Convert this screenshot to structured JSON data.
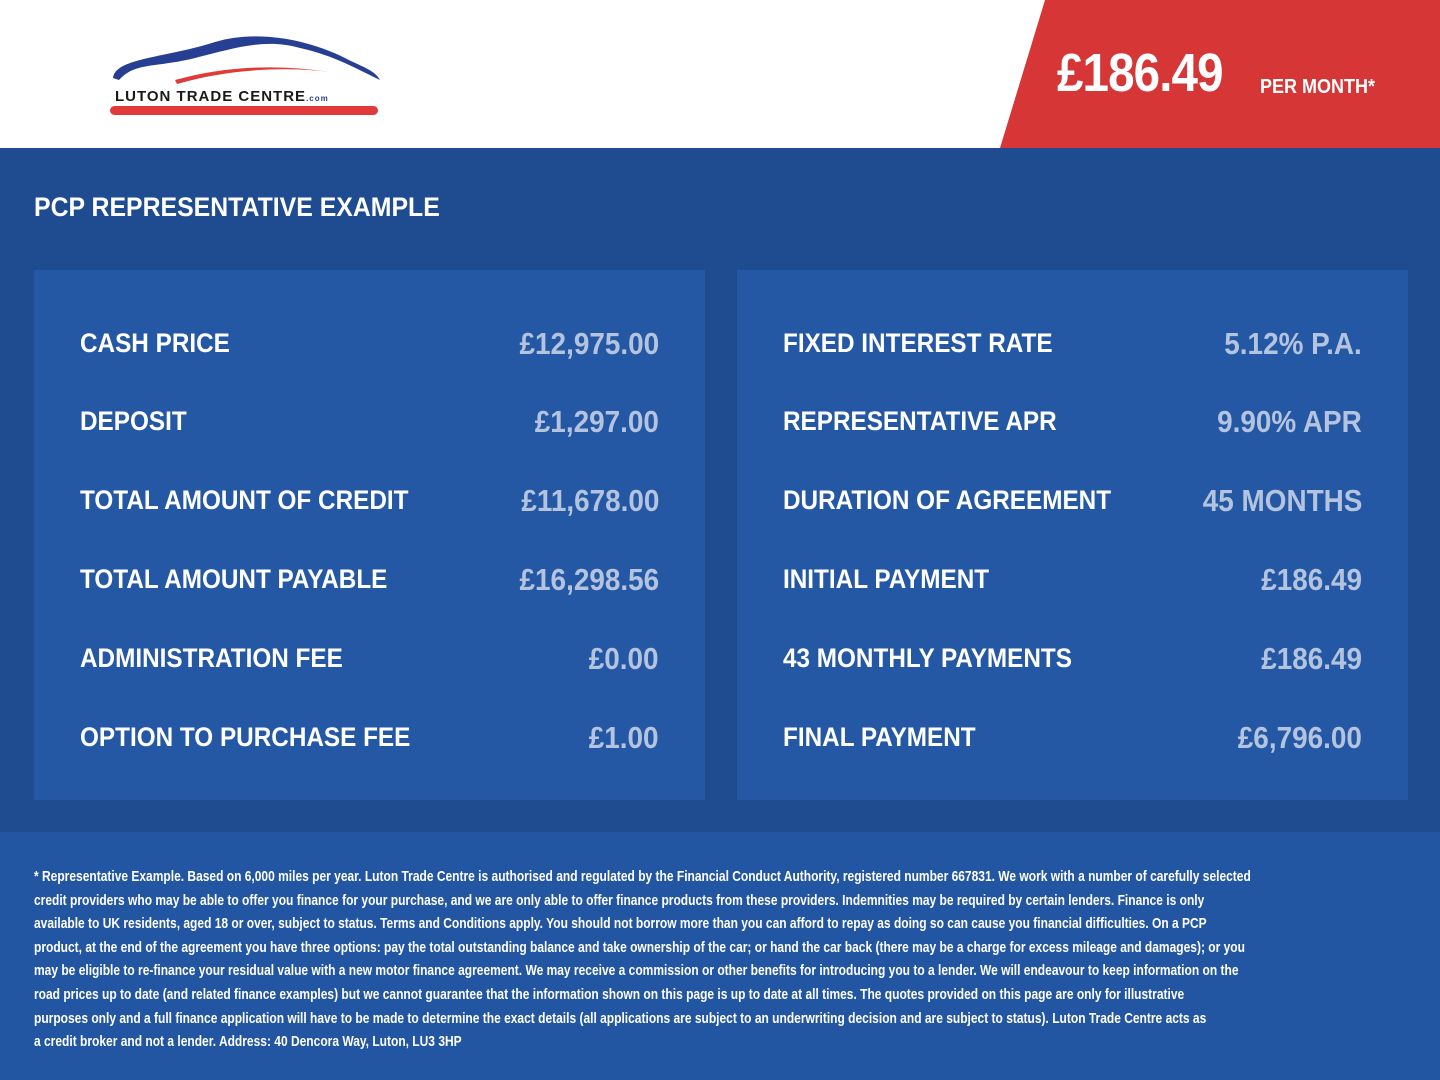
{
  "header": {
    "logo": {
      "text": "LUTON TRADE CENTRE",
      "suffix": ".com"
    },
    "price": "£186.49",
    "price_suffix": "PER MONTH*"
  },
  "section_title": "PCP REPRESENTATIVE EXAMPLE",
  "left_panel": [
    {
      "label": "CASH PRICE",
      "value": "£12,975.00"
    },
    {
      "label": "DEPOSIT",
      "value": "£1,297.00"
    },
    {
      "label": "TOTAL AMOUNT OF CREDIT",
      "value": "£11,678.00"
    },
    {
      "label": "TOTAL AMOUNT PAYABLE",
      "value": "£16,298.56"
    },
    {
      "label": "ADMINISTRATION FEE",
      "value": "£0.00"
    },
    {
      "label": "OPTION TO PURCHASE FEE",
      "value": "£1.00"
    }
  ],
  "right_panel": [
    {
      "label": "FIXED INTEREST RATE",
      "value": "5.12% P.A."
    },
    {
      "label": "REPRESENTATIVE APR",
      "value": "9.90% APR"
    },
    {
      "label": "DURATION OF AGREEMENT",
      "value": "45 MONTHS"
    },
    {
      "label": "INITIAL PAYMENT",
      "value": "£186.49"
    },
    {
      "label": "43 MONTHLY PAYMENTS",
      "value": "£186.49"
    },
    {
      "label": "FINAL PAYMENT",
      "value": "£6,796.00"
    }
  ],
  "footer": {
    "lines": [
      "* Representative Example. Based on 6,000 miles per year. Luton Trade Centre is authorised and regulated by the Financial Conduct Authority, registered number 667831. We work with a number of carefully selected",
      "credit providers who may be able to offer you finance for your purchase, and we are only able to offer finance products from these providers. Indemnities may be required by certain lenders. Finance is only",
      "available to UK residents, aged 18 or over, subject to status. Terms and Conditions apply. You should not borrow more than you can afford to repay as doing so can cause you financial difficulties. On a PCP",
      "product, at the end of the agreement you have three options: pay the total outstanding balance and take ownership of the car; or hand the car back (there may be a charge for excess mileage and damages); or you",
      "may be eligible to re-finance your residual value with a new motor finance agreement. We may receive a commission or other benefits for introducing you to a lender. We will endeavour to keep information on the",
      "road prices up to date (and related finance examples) but we cannot guarantee that the information shown on this page is up to date at all times. The quotes provided on this page are only for illustrative",
      "purposes only and a full finance application will have to be made to determine the exact details (all applications are subject to an underwriting decision and are subject to status). Luton Trade Centre acts as",
      "a credit broker and not a lender. Address: 40 Dencora Way, Luton, LU3 3HP"
    ]
  },
  "colors": {
    "brand_blue": "#1f4b90",
    "panel_blue": "#2558a4",
    "accent_red": "#d63636"
  }
}
